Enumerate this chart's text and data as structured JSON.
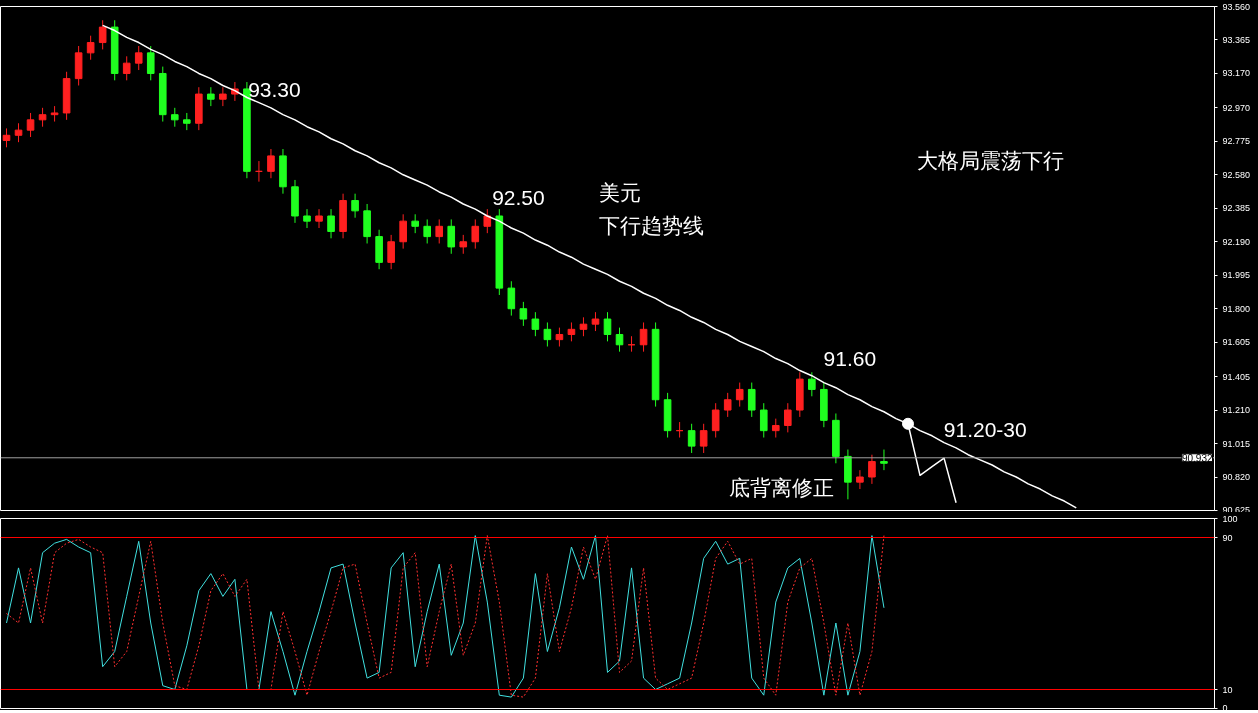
{
  "chart_data": [
    {
      "type": "candlestick",
      "categories": [
        null,
        null,
        null,
        null,
        null,
        null,
        null,
        null,
        null,
        null,
        null,
        null,
        null,
        null,
        null,
        null,
        null,
        null,
        null,
        null,
        null,
        null,
        null,
        null,
        null,
        null,
        null,
        null,
        null,
        null,
        null,
        null,
        null,
        null,
        null,
        null,
        null,
        null,
        null,
        null,
        null,
        null,
        null,
        null,
        null,
        null,
        null,
        null,
        null,
        null,
        null,
        null,
        null,
        null,
        null,
        null,
        null,
        null,
        null,
        null,
        null,
        null,
        null,
        null,
        null,
        null,
        null,
        null,
        null,
        null,
        null,
        null,
        null,
        null,
        null,
        null,
        null,
        null,
        null,
        null,
        null,
        null,
        null,
        null,
        null,
        null,
        null,
        null,
        null,
        null,
        null,
        null,
        null,
        null,
        null,
        null,
        null,
        null,
        null,
        null,
        null
      ],
      "ohlc": [
        [
          92.78,
          92.85,
          92.74,
          92.81
        ],
        [
          92.81,
          92.88,
          92.77,
          92.84
        ],
        [
          92.84,
          92.94,
          92.8,
          92.9
        ],
        [
          92.9,
          92.97,
          92.86,
          92.93
        ],
        [
          92.93,
          92.98,
          92.89,
          92.94
        ],
        [
          92.94,
          93.18,
          92.9,
          93.14
        ],
        [
          93.14,
          93.33,
          93.1,
          93.29
        ],
        [
          93.29,
          93.39,
          93.25,
          93.35
        ],
        [
          93.35,
          93.48,
          93.31,
          93.44
        ],
        [
          93.44,
          93.48,
          93.13,
          93.17
        ],
        [
          93.17,
          93.27,
          93.13,
          93.23
        ],
        [
          93.23,
          93.33,
          93.19,
          93.29
        ],
        [
          93.29,
          93.33,
          93.13,
          93.17
        ],
        [
          93.17,
          93.21,
          92.89,
          92.93
        ],
        [
          92.93,
          92.97,
          92.86,
          92.9
        ],
        [
          92.9,
          92.94,
          92.84,
          92.88
        ],
        [
          92.88,
          93.09,
          92.84,
          93.05
        ],
        [
          93.05,
          93.09,
          92.98,
          93.02
        ],
        [
          93.02,
          93.09,
          92.98,
          93.05
        ],
        [
          93.05,
          93.12,
          93.01,
          93.08
        ],
        [
          93.08,
          93.12,
          92.56,
          92.6
        ],
        [
          92.6,
          92.66,
          92.54,
          92.6
        ],
        [
          92.6,
          92.73,
          92.56,
          92.69
        ],
        [
          92.69,
          92.73,
          92.47,
          92.51
        ],
        [
          92.51,
          92.55,
          92.3,
          92.34
        ],
        [
          92.34,
          92.38,
          92.27,
          92.31
        ],
        [
          92.31,
          92.38,
          92.27,
          92.34
        ],
        [
          92.34,
          92.38,
          92.21,
          92.25
        ],
        [
          92.25,
          92.47,
          92.21,
          92.43
        ],
        [
          92.43,
          92.47,
          92.33,
          92.37
        ],
        [
          92.37,
          92.41,
          92.18,
          92.22
        ],
        [
          92.22,
          92.26,
          92.03,
          92.07
        ],
        [
          92.07,
          92.23,
          92.03,
          92.19
        ],
        [
          92.19,
          92.35,
          92.15,
          92.31
        ],
        [
          92.31,
          92.35,
          92.24,
          92.28
        ],
        [
          92.28,
          92.32,
          92.18,
          92.22
        ],
        [
          92.22,
          92.32,
          92.18,
          92.28
        ],
        [
          92.28,
          92.32,
          92.12,
          92.16
        ],
        [
          92.16,
          92.23,
          92.12,
          92.19
        ],
        [
          92.19,
          92.32,
          92.15,
          92.28
        ],
        [
          92.28,
          92.38,
          92.24,
          92.34
        ],
        [
          92.34,
          92.38,
          91.88,
          91.92
        ],
        [
          91.92,
          91.96,
          91.76,
          91.8
        ],
        [
          91.8,
          91.84,
          91.7,
          91.74
        ],
        [
          91.74,
          91.78,
          91.64,
          91.68
        ],
        [
          91.68,
          91.72,
          91.58,
          91.62
        ],
        [
          91.62,
          91.69,
          91.58,
          91.65
        ],
        [
          91.65,
          91.72,
          91.61,
          91.68
        ],
        [
          91.68,
          91.75,
          91.64,
          91.71
        ],
        [
          91.71,
          91.78,
          91.67,
          91.74
        ],
        [
          91.74,
          91.78,
          91.61,
          91.65
        ],
        [
          91.65,
          91.69,
          91.55,
          91.59
        ],
        [
          91.59,
          91.64,
          91.55,
          91.59
        ],
        [
          91.59,
          91.72,
          91.55,
          91.68
        ],
        [
          91.68,
          91.72,
          91.23,
          91.27
        ],
        [
          91.27,
          91.31,
          91.05,
          91.09
        ],
        [
          91.09,
          91.14,
          91.05,
          91.09
        ],
        [
          91.09,
          91.13,
          90.96,
          91.0
        ],
        [
          91.0,
          91.13,
          90.96,
          91.09
        ],
        [
          91.09,
          91.25,
          91.05,
          91.21
        ],
        [
          91.21,
          91.31,
          91.17,
          91.27
        ],
        [
          91.27,
          91.37,
          91.23,
          91.33
        ],
        [
          91.33,
          91.37,
          91.17,
          91.21
        ],
        [
          91.21,
          91.25,
          91.05,
          91.09
        ],
        [
          91.09,
          91.16,
          91.05,
          91.12
        ],
        [
          91.12,
          91.25,
          91.08,
          91.21
        ],
        [
          91.21,
          91.43,
          91.17,
          91.39
        ],
        [
          91.39,
          91.43,
          91.29,
          91.33
        ],
        [
          91.33,
          91.37,
          91.11,
          91.15
        ],
        [
          91.15,
          91.19,
          90.9,
          90.94
        ],
        [
          90.94,
          90.98,
          90.69,
          90.79
        ],
        [
          90.79,
          90.86,
          90.75,
          90.82
        ],
        [
          90.82,
          90.95,
          90.78,
          90.91
        ],
        [
          90.91,
          90.98,
          90.86,
          90.9
        ],
        null,
        null,
        null,
        null,
        null,
        null,
        null,
        null,
        null,
        null,
        null,
        null,
        null,
        null,
        null,
        null,
        null,
        null,
        null,
        null,
        null,
        null,
        null,
        null,
        null,
        null,
        null
      ],
      "colors": [
        "#ff2020",
        "#ff2020",
        "#ff2020",
        "#ff2020",
        "#ff2020",
        "#ff2020",
        "#ff2020",
        "#ff2020",
        "#ff2020",
        "#20ff20",
        "#ff2020",
        "#ff2020",
        "#20ff20",
        "#20ff20",
        "#20ff20",
        "#20ff20",
        "#ff2020",
        "#20ff20",
        "#ff2020",
        "#ff2020",
        "#20ff20",
        "#ff2020",
        "#ff2020",
        "#20ff20",
        "#20ff20",
        "#20ff20",
        "#ff2020",
        "#20ff20",
        "#ff2020",
        "#20ff20",
        "#20ff20",
        "#20ff20",
        "#ff2020",
        "#ff2020",
        "#20ff20",
        "#20ff20",
        "#ff2020",
        "#20ff20",
        "#ff2020",
        "#ff2020",
        "#ff2020",
        "#20ff20",
        "#20ff20",
        "#20ff20",
        "#20ff20",
        "#20ff20",
        "#ff2020",
        "#ff2020",
        "#ff2020",
        "#ff2020",
        "#20ff20",
        "#20ff20",
        "#ff2020",
        "#ff2020",
        "#20ff20",
        "#20ff20",
        "#ff2020",
        "#20ff20",
        "#ff2020",
        "#ff2020",
        "#ff2020",
        "#ff2020",
        "#20ff20",
        "#20ff20",
        "#ff2020",
        "#ff2020",
        "#ff2020",
        "#20ff20",
        "#20ff20",
        "#20ff20",
        "#20ff20",
        "#ff2020",
        "#ff2020",
        "#20ff20",
        null,
        null,
        null,
        null,
        null,
        null,
        null,
        null,
        null,
        null,
        null,
        null,
        null,
        null,
        null,
        null,
        null,
        null,
        null,
        null,
        null,
        null,
        null,
        null,
        null,
        null,
        null
      ],
      "series": [
        {
          "type": "line",
          "color": "#ffffff",
          "values": [
            null,
            null,
            null,
            null,
            null,
            null,
            null,
            null,
            93.45,
            93.42,
            93.38,
            93.35,
            93.31,
            93.28,
            93.24,
            93.21,
            93.17,
            93.14,
            93.1,
            93.07,
            93.03,
            93.0,
            92.97,
            92.93,
            92.9,
            92.86,
            92.83,
            92.79,
            92.76,
            92.72,
            92.69,
            92.65,
            92.62,
            92.58,
            92.55,
            92.52,
            92.48,
            92.45,
            92.41,
            92.38,
            92.34,
            92.31,
            92.27,
            92.24,
            92.2,
            92.17,
            92.13,
            92.1,
            92.06,
            92.03,
            92.0,
            91.96,
            91.93,
            91.89,
            91.86,
            91.82,
            91.79,
            91.75,
            91.72,
            91.68,
            91.65,
            91.61,
            91.58,
            91.55,
            91.51,
            91.48,
            91.44,
            91.41,
            91.37,
            91.34,
            91.3,
            91.27,
            91.23,
            91.2,
            91.16,
            91.13,
            91.09,
            91.06,
            91.02,
            90.99,
            90.95,
            90.92,
            90.89,
            90.85,
            90.82,
            90.78,
            90.75,
            90.71,
            90.68,
            90.64,
            null,
            null,
            null,
            null,
            null,
            null,
            null,
            null,
            null,
            null,
            null
          ]
        },
        {
          "type": "scatter",
          "color": "#ffffff",
          "values": [
            null,
            null,
            null,
            null,
            null,
            null,
            null,
            null,
            null,
            null,
            null,
            null,
            null,
            null,
            null,
            null,
            null,
            null,
            null,
            null,
            null,
            null,
            null,
            null,
            null,
            null,
            null,
            null,
            null,
            null,
            null,
            null,
            null,
            null,
            null,
            null,
            null,
            null,
            null,
            null,
            null,
            null,
            null,
            null,
            null,
            null,
            null,
            null,
            null,
            null,
            null,
            null,
            null,
            null,
            null,
            null,
            null,
            null,
            null,
            null,
            null,
            null,
            null,
            null,
            null,
            null,
            null,
            null,
            null,
            null,
            null,
            null,
            null,
            null,
            null,
            91.13,
            null,
            null,
            null,
            null,
            null,
            null,
            null,
            null,
            null,
            null,
            null,
            null,
            null,
            null,
            null,
            null,
            null,
            null,
            null,
            null,
            null,
            null,
            null,
            null,
            null
          ]
        },
        {
          "type": "line",
          "color": "#ffffff",
          "values": [
            null,
            null,
            null,
            null,
            null,
            null,
            null,
            null,
            null,
            null,
            null,
            null,
            null,
            null,
            null,
            null,
            null,
            null,
            null,
            null,
            null,
            null,
            null,
            null,
            null,
            null,
            null,
            null,
            null,
            null,
            null,
            null,
            null,
            null,
            null,
            null,
            null,
            null,
            null,
            null,
            null,
            null,
            null,
            null,
            null,
            null,
            null,
            null,
            null,
            null,
            null,
            null,
            null,
            null,
            null,
            null,
            null,
            null,
            null,
            null,
            null,
            null,
            null,
            null,
            null,
            null,
            null,
            null,
            null,
            null,
            null,
            null,
            null,
            null,
            null,
            91.13,
            90.83,
            90.88,
            90.93,
            90.67,
            null,
            null,
            null,
            null,
            null,
            null,
            null,
            null,
            null,
            null,
            null,
            null,
            null,
            null,
            null,
            null,
            null,
            null,
            null,
            null,
            null
          ]
        }
      ],
      "ylim": [
        90.625,
        93.56
      ],
      "yticks": [
        {
          "value": 93.56,
          "label": "93.560"
        },
        93.365,
        {
          "value": 93.17,
          "label": "93.170"
        },
        {
          "value": 92.97,
          "label": "92.970"
        },
        92.775,
        {
          "value": 92.58,
          "label": "92.580"
        },
        92.385,
        {
          "value": 92.19,
          "label": "92.190"
        },
        91.995,
        {
          "value": 91.8,
          "label": "91.800"
        },
        91.605,
        91.405,
        {
          "value": 91.21,
          "label": "91.210"
        },
        91.015,
        {
          "value": 90.82,
          "label": "90.820"
        },
        90.625
      ],
      "ref_lines": [
        {
          "axis": "y",
          "value": 90.932,
          "label": "90.932",
          "color": "#a0a0a0"
        }
      ],
      "annotations": [
        "93.30",
        "92.50",
        "美元",
        "下行趋势线",
        "91.60",
        "91.20-30",
        "大格局震荡下行",
        "底背离修正"
      ],
      "grid": false
    },
    {
      "type": "line",
      "categories": [
        null,
        null,
        null,
        null,
        null,
        null,
        null,
        null,
        null,
        null,
        null,
        null,
        null,
        null,
        null,
        null,
        null,
        null,
        null,
        null,
        null,
        null,
        null,
        null,
        null,
        null,
        null,
        null,
        null,
        null,
        null,
        null,
        null,
        null,
        null,
        null,
        null,
        null,
        null,
        null,
        null,
        null,
        null,
        null,
        null,
        null,
        null,
        null,
        null,
        null,
        null,
        null,
        null,
        null,
        null,
        null,
        null,
        null,
        null,
        null,
        null,
        null,
        null,
        null,
        null,
        null,
        null,
        null,
        null,
        null,
        null,
        null,
        null,
        null,
        null,
        null,
        null,
        null,
        null,
        null,
        null,
        null,
        null,
        null,
        null,
        null,
        null,
        null,
        null,
        null,
        null,
        null,
        null,
        null,
        null,
        null,
        null,
        null,
        null,
        null,
        null
      ],
      "series": [
        {
          "color": "#40e0e0",
          "line_style": "solid",
          "values": [
            45,
            74,
            45,
            82,
            87,
            89,
            85,
            82,
            22,
            30,
            59,
            88,
            45,
            12,
            10,
            33,
            62,
            71,
            59,
            68,
            10,
            10,
            51,
            30,
            7,
            30,
            51,
            74,
            76,
            45,
            16,
            19,
            74,
            82,
            22,
            51,
            76,
            28,
            45,
            91,
            56,
            7,
            6,
            16,
            71,
            30,
            53,
            85,
            68,
            91,
            19,
            25,
            74,
            16,
            10,
            13,
            16,
            45,
            79,
            88,
            76,
            79,
            16,
            7,
            56,
            74,
            79,
            45,
            7,
            45,
            7,
            30,
            91,
            53,
            null,
            null,
            null,
            null,
            null,
            null,
            null,
            null,
            null,
            null,
            null,
            null,
            null,
            null,
            null,
            null,
            null,
            null,
            null,
            null,
            null,
            null,
            null,
            null,
            null,
            null,
            null
          ]
        },
        {
          "color": "#ff3030",
          "line_style": "dotted",
          "values": [
            50,
            45,
            74,
            45,
            82,
            87,
            89,
            85,
            82,
            22,
            30,
            59,
            88,
            45,
            12,
            10,
            33,
            62,
            71,
            59,
            68,
            10,
            10,
            51,
            30,
            7,
            30,
            51,
            74,
            76,
            45,
            16,
            19,
            74,
            82,
            22,
            51,
            76,
            28,
            45,
            91,
            56,
            7,
            6,
            16,
            71,
            30,
            53,
            85,
            68,
            91,
            19,
            25,
            74,
            16,
            10,
            13,
            16,
            45,
            79,
            88,
            76,
            79,
            16,
            7,
            56,
            74,
            79,
            45,
            7,
            45,
            7,
            30,
            91,
            null,
            null,
            null,
            null,
            null,
            null,
            null,
            null,
            null,
            null,
            null,
            null,
            null,
            null,
            null,
            null,
            null,
            null,
            null,
            null,
            null,
            null,
            null,
            null,
            null,
            null,
            null
          ]
        }
      ],
      "ylim": [
        0,
        100
      ],
      "yticks": [
        0,
        10,
        90,
        100
      ],
      "ref_lines": [
        {
          "axis": "y",
          "value": 90,
          "color": "#ff0000"
        },
        {
          "axis": "y",
          "value": 10,
          "color": "#ff0000"
        }
      ],
      "grid": false
    }
  ]
}
